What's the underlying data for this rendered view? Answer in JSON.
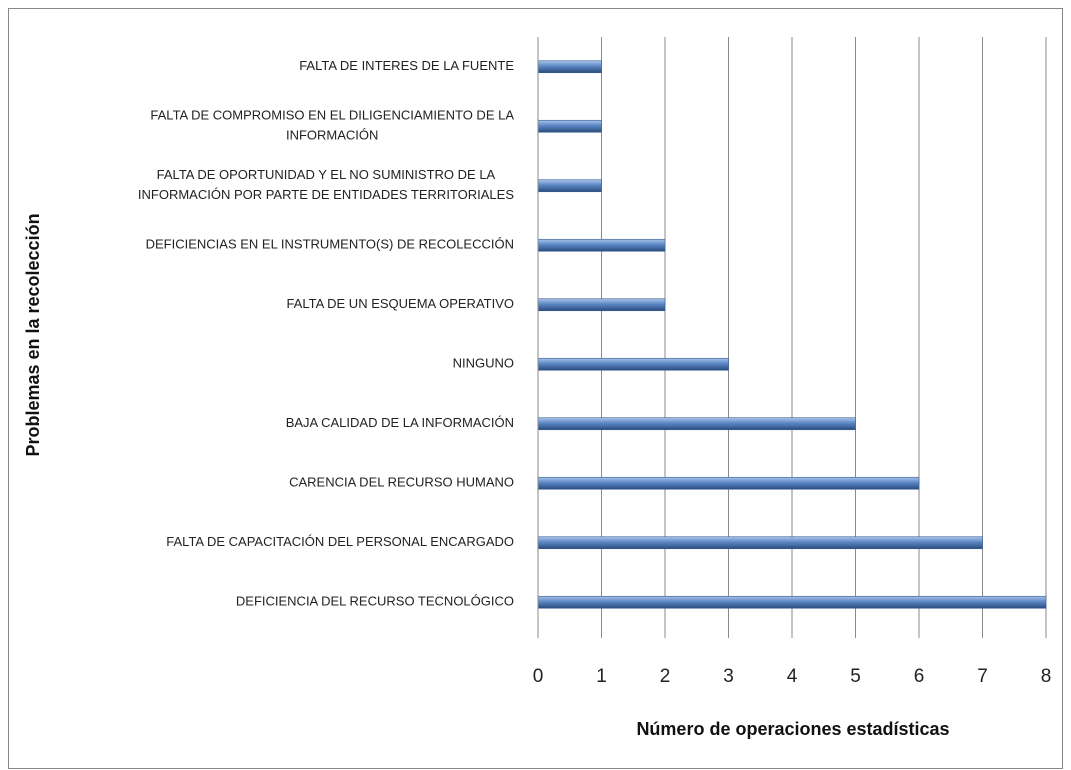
{
  "chart_data": {
    "type": "bar",
    "orientation": "horizontal",
    "x_label": "Número de operaciones  estadísticas",
    "y_label": "Problemas en la recolección",
    "categories": [
      "FALTA DE INTERES  DE LA FUENTE",
      "FALTA DE COMPROMISO EN EL DILIGENCIAMIENTO  DE LA\nINFORMACIÓN",
      "FALTA DE OPORTUNIDAD Y EL NO SUMINISTRO DE LA\nINFORMACIÓN POR PARTE  DE ENTIDADES  TERRITORIALES",
      "DEFICIENCIAS  EN EL INSTRUMENTO(S)  DE RECOLECCIÓN",
      "FALTA DE UN ESQUEMA  OPERATIVO",
      "NINGUNO",
      "BAJA CALIDAD  DE LA INFORMACIÓN",
      "CARENCIA DEL RECURSO HUMANO",
      "FALTA DE CAPACITACIÓN  DEL PERSONAL ENCARGADO",
      "DEFICIENCIA  DEL RECURSO TECNOLÓGICO"
    ],
    "values": [
      1,
      1,
      1,
      2,
      2,
      3,
      5,
      6,
      7,
      8
    ],
    "color": "#4f81bd",
    "xlim": [
      0,
      8
    ],
    "xticks": [
      0,
      1,
      2,
      3,
      4,
      5,
      6,
      7,
      8
    ],
    "grid": true
  }
}
